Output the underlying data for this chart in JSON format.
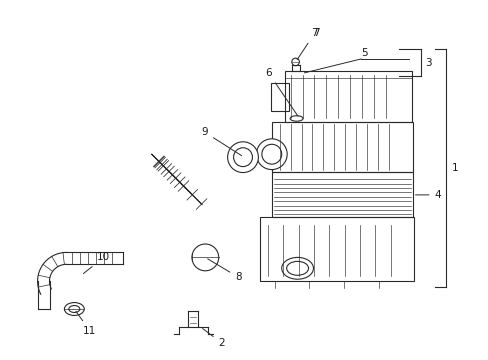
{
  "background_color": "#ffffff",
  "line_color": "#2a2a2a",
  "label_color": "#1a1a1a",
  "fig_width": 4.89,
  "fig_height": 3.6,
  "dpi": 100
}
